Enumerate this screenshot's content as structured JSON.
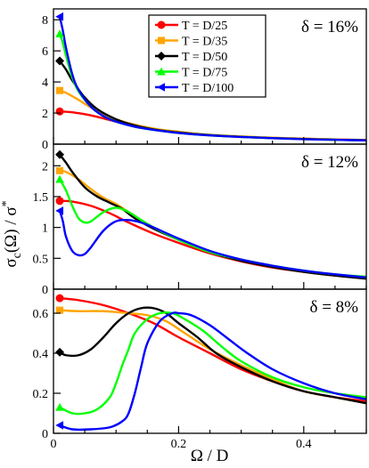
{
  "chart_data": {
    "type": "line",
    "xlabel": "Ω / D",
    "ylabel": "σc(Ω) / σ*",
    "ylabel_parts": {
      "main": "σ",
      "sub": "c",
      "rest": "(Ω) / σ",
      "sup": "*"
    },
    "xlim": [
      0,
      0.5
    ],
    "xticks": [
      "0",
      "0.2",
      "0.4"
    ],
    "grid": false,
    "legend": {
      "placement": "top-right of top panel",
      "entries": [
        {
          "label": "T = D/25",
          "color": "#ff0000",
          "marker": "circle"
        },
        {
          "label": "T = D/35",
          "color": "#ffa500",
          "marker": "square"
        },
        {
          "label": "T = D/50",
          "color": "#000000",
          "marker": "diamond"
        },
        {
          "label": "T = D/75",
          "color": "#00ff00",
          "marker": "triangle-up"
        },
        {
          "label": "T = D/100",
          "color": "#0000ff",
          "marker": "triangle-left"
        }
      ]
    },
    "panels": [
      {
        "label": "δ = 16%",
        "ylim": [
          0,
          8.7
        ],
        "yticks": [
          "0",
          "2",
          "4",
          "6",
          "8"
        ],
        "series": [
          {
            "name": "T = D/25",
            "x": [
              0.01,
              0.03,
              0.06,
              0.09,
              0.12,
              0.16,
              0.2,
              0.25,
              0.3,
              0.35,
              0.4,
              0.45,
              0.5
            ],
            "y": [
              2.1,
              2.05,
              1.85,
              1.55,
              1.25,
              0.95,
              0.75,
              0.58,
              0.48,
              0.4,
              0.35,
              0.3,
              0.27
            ]
          },
          {
            "name": "T = D/35",
            "x": [
              0.01,
              0.02,
              0.04,
              0.06,
              0.09,
              0.12,
              0.16,
              0.2,
              0.25,
              0.3,
              0.35,
              0.4,
              0.45,
              0.5
            ],
            "y": [
              3.45,
              3.3,
              2.85,
              2.35,
              1.75,
              1.35,
              1.0,
              0.8,
              0.6,
              0.5,
              0.41,
              0.35,
              0.3,
              0.26
            ]
          },
          {
            "name": "T = D/50",
            "x": [
              0.01,
              0.02,
              0.03,
              0.05,
              0.07,
              0.1,
              0.13,
              0.16,
              0.2,
              0.25,
              0.3,
              0.35,
              0.4,
              0.45,
              0.5
            ],
            "y": [
              5.35,
              4.8,
              4.1,
              3.0,
              2.25,
              1.6,
              1.2,
              0.95,
              0.75,
              0.58,
              0.47,
              0.39,
              0.33,
              0.28,
              0.25
            ]
          },
          {
            "name": "T = D/75",
            "x": [
              0.01,
              0.015,
              0.02,
              0.03,
              0.04,
              0.06,
              0.08,
              0.1,
              0.13,
              0.16,
              0.2,
              0.25,
              0.3,
              0.35,
              0.4,
              0.45,
              0.5
            ],
            "y": [
              7.1,
              6.5,
              5.7,
              4.3,
              3.4,
              2.4,
              1.8,
              1.45,
              1.12,
              0.92,
              0.72,
              0.56,
              0.46,
              0.38,
              0.32,
              0.28,
              0.24
            ]
          },
          {
            "name": "T = D/100",
            "x": [
              0.01,
              0.015,
              0.02,
              0.03,
              0.04,
              0.06,
              0.08,
              0.1,
              0.13,
              0.16,
              0.2,
              0.25,
              0.3,
              0.35,
              0.4,
              0.45,
              0.5
            ],
            "y": [
              8.2,
              7.3,
              6.2,
              4.5,
              3.5,
              2.4,
              1.8,
              1.45,
              1.12,
              0.92,
              0.72,
              0.56,
              0.46,
              0.38,
              0.32,
              0.28,
              0.24
            ]
          }
        ]
      },
      {
        "label": "δ = 12%",
        "ylim": [
          0,
          2.35
        ],
        "yticks": [
          "0",
          "0.5",
          "1",
          "1.5",
          "2"
        ],
        "series": [
          {
            "name": "T = D/25",
            "x": [
              0.01,
              0.03,
              0.06,
              0.09,
              0.12,
              0.16,
              0.2,
              0.25,
              0.3,
              0.35,
              0.4,
              0.45,
              0.5
            ],
            "y": [
              1.43,
              1.42,
              1.35,
              1.23,
              1.08,
              0.9,
              0.75,
              0.58,
              0.45,
              0.35,
              0.28,
              0.22,
              0.18
            ]
          },
          {
            "name": "T = D/35",
            "x": [
              0.01,
              0.02,
              0.04,
              0.06,
              0.08,
              0.1,
              0.12,
              0.14,
              0.16,
              0.2,
              0.25,
              0.3,
              0.35,
              0.4,
              0.45,
              0.5
            ],
            "y": [
              1.92,
              1.9,
              1.78,
              1.62,
              1.48,
              1.38,
              1.25,
              1.12,
              1.0,
              0.8,
              0.6,
              0.46,
              0.36,
              0.28,
              0.22,
              0.18
            ]
          },
          {
            "name": "T = D/50",
            "x": [
              0.01,
              0.02,
              0.03,
              0.05,
              0.07,
              0.09,
              0.11,
              0.13,
              0.16,
              0.2,
              0.25,
              0.3,
              0.35,
              0.4,
              0.45,
              0.5
            ],
            "y": [
              2.18,
              2.05,
              1.9,
              1.65,
              1.5,
              1.4,
              1.3,
              1.15,
              0.98,
              0.8,
              0.6,
              0.46,
              0.36,
              0.28,
              0.22,
              0.17
            ]
          },
          {
            "name": "T = D/75",
            "x": [
              0.01,
              0.02,
              0.03,
              0.04,
              0.05,
              0.06,
              0.08,
              0.1,
              0.12,
              0.14,
              0.16,
              0.2,
              0.25,
              0.3,
              0.35,
              0.4,
              0.45,
              0.5
            ],
            "y": [
              1.78,
              1.6,
              1.35,
              1.15,
              1.08,
              1.1,
              1.25,
              1.32,
              1.25,
              1.12,
              1.0,
              0.8,
              0.6,
              0.48,
              0.38,
              0.3,
              0.24,
              0.2
            ]
          },
          {
            "name": "T = D/100",
            "x": [
              0.01,
              0.015,
              0.02,
              0.03,
              0.04,
              0.05,
              0.06,
              0.08,
              0.1,
              0.12,
              0.14,
              0.16,
              0.2,
              0.25,
              0.3,
              0.35,
              0.4,
              0.45,
              0.5
            ],
            "y": [
              1.27,
              1.1,
              0.85,
              0.62,
              0.55,
              0.57,
              0.68,
              0.95,
              1.1,
              1.12,
              1.08,
              1.0,
              0.82,
              0.62,
              0.48,
              0.38,
              0.3,
              0.24,
              0.19
            ]
          }
        ]
      },
      {
        "label": "δ = 8%",
        "ylim": [
          0,
          0.72
        ],
        "yticks": [
          "0",
          "0.2",
          "0.4",
          "0.6"
        ],
        "series": [
          {
            "name": "T = D/25",
            "x": [
              0.01,
              0.04,
              0.08,
              0.12,
              0.16,
              0.2,
              0.25,
              0.3,
              0.35,
              0.4,
              0.45,
              0.5
            ],
            "y": [
              0.675,
              0.665,
              0.64,
              0.6,
              0.55,
              0.48,
              0.4,
              0.32,
              0.26,
              0.21,
              0.18,
              0.16
            ]
          },
          {
            "name": "T = D/35",
            "x": [
              0.01,
              0.04,
              0.08,
              0.12,
              0.15,
              0.18,
              0.21,
              0.25,
              0.3,
              0.35,
              0.4,
              0.45,
              0.5
            ],
            "y": [
              0.615,
              0.61,
              0.61,
              0.6,
              0.59,
              0.56,
              0.5,
              0.42,
              0.34,
              0.27,
              0.21,
              0.18,
              0.15
            ]
          },
          {
            "name": "T = D/50",
            "x": [
              0.01,
              0.02,
              0.04,
              0.06,
              0.08,
              0.1,
              0.12,
              0.14,
              0.16,
              0.18,
              0.2,
              0.23,
              0.26,
              0.3,
              0.35,
              0.4,
              0.45,
              0.5
            ],
            "y": [
              0.405,
              0.39,
              0.39,
              0.42,
              0.48,
              0.55,
              0.6,
              0.625,
              0.625,
              0.6,
              0.55,
              0.48,
              0.4,
              0.33,
              0.26,
              0.21,
              0.18,
              0.15
            ]
          },
          {
            "name": "T = D/75",
            "x": [
              0.01,
              0.03,
              0.05,
              0.07,
              0.09,
              0.1,
              0.11,
              0.12,
              0.13,
              0.15,
              0.17,
              0.19,
              0.21,
              0.24,
              0.27,
              0.3,
              0.35,
              0.4,
              0.45,
              0.5
            ],
            "y": [
              0.13,
              0.1,
              0.1,
              0.12,
              0.18,
              0.25,
              0.34,
              0.42,
              0.5,
              0.57,
              0.6,
              0.6,
              0.57,
              0.51,
              0.43,
              0.36,
              0.28,
              0.23,
              0.2,
              0.18
            ]
          },
          {
            "name": "T = D/100",
            "x": [
              0.01,
              0.03,
              0.06,
              0.09,
              0.11,
              0.12,
              0.13,
              0.14,
              0.15,
              0.17,
              0.19,
              0.2,
              0.22,
              0.25,
              0.28,
              0.31,
              0.35,
              0.4,
              0.45,
              0.5
            ],
            "y": [
              0.04,
              0.02,
              0.02,
              0.03,
              0.06,
              0.1,
              0.2,
              0.33,
              0.45,
              0.56,
              0.6,
              0.6,
              0.59,
              0.54,
              0.47,
              0.4,
              0.32,
              0.25,
              0.2,
              0.17
            ]
          }
        ]
      }
    ]
  }
}
